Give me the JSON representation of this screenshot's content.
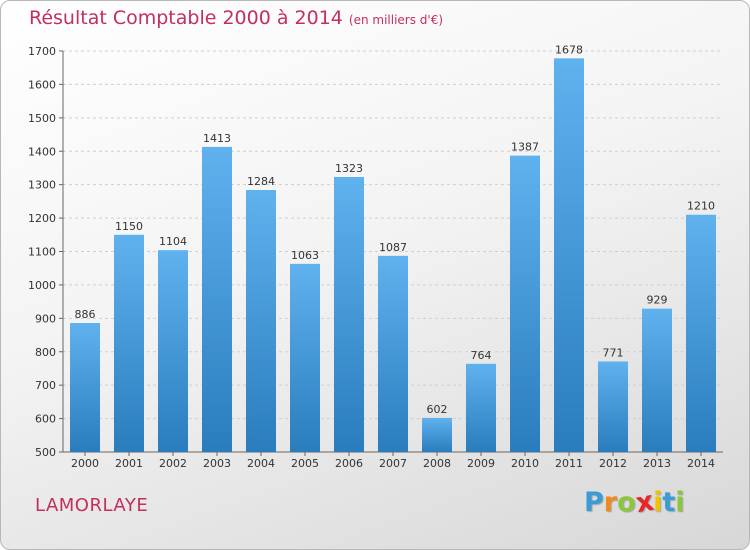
{
  "chart_data": {
    "type": "bar",
    "title": "Résultat Comptable 2000 à 2014",
    "subtitle": "(en milliers d'€)",
    "categories": [
      "2000",
      "2001",
      "2002",
      "2003",
      "2004",
      "2005",
      "2006",
      "2007",
      "2008",
      "2009",
      "2010",
      "2011",
      "2012",
      "2013",
      "2014"
    ],
    "values": [
      886,
      1150,
      1104,
      1413,
      1284,
      1063,
      1323,
      1087,
      602,
      764,
      1387,
      1678,
      771,
      929,
      1210
    ],
    "ylim": [
      500,
      1700
    ],
    "yticks": [
      500,
      600,
      700,
      800,
      900,
      1000,
      1100,
      1200,
      1300,
      1400,
      1500,
      1600,
      1700
    ],
    "grid": true,
    "bar_color": "#3a95d8"
  },
  "footer": {
    "commune": "LAMORLAYE",
    "brand_letters": [
      "P",
      "r",
      "o",
      "x",
      "i",
      "t",
      "i"
    ],
    "brand_colors": [
      "#3a9bd6",
      "#f08a1c",
      "#8cc63f",
      "#e8262a",
      "#f2c200",
      "#3a9bd6",
      "#8cc63f"
    ]
  },
  "colors": {
    "title": "#c2305c"
  }
}
